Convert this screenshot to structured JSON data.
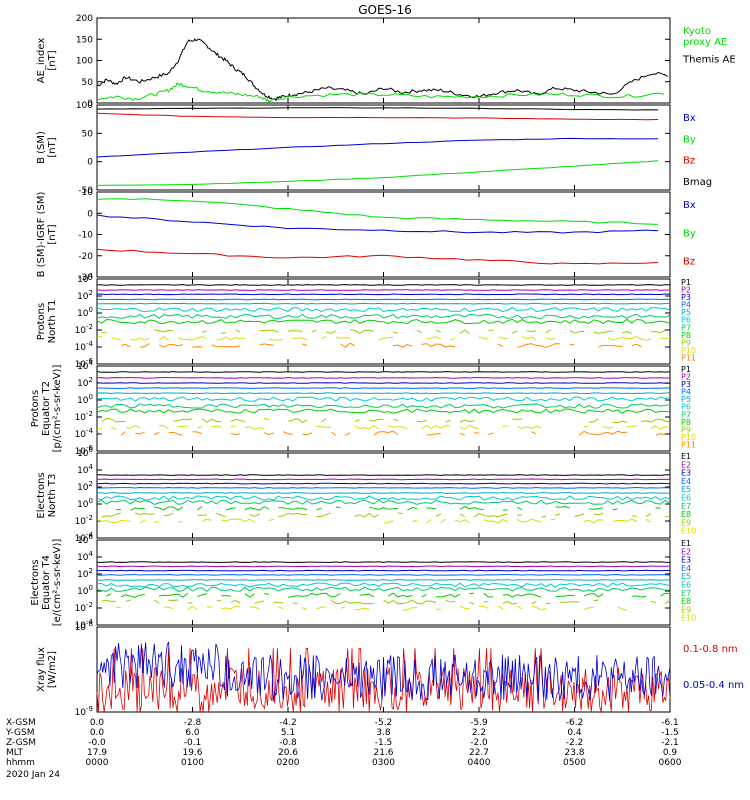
{
  "title": "GOES-16",
  "colors": {
    "black": "#000000",
    "green": "#00dd00",
    "blue": "#0000cc",
    "red": "#dd0000",
    "p": [
      "#000000",
      "#aa00aa",
      "#0000cc",
      "#0066ff",
      "#00aacc",
      "#00cccc",
      "#00cc66",
      "#00cc00",
      "#99cc00",
      "#dddd00",
      "#ff8800",
      "#ff0000",
      "#cc0000"
    ]
  },
  "chart_data": [
    {
      "type": "line",
      "ylabel": "AE_index\n[nT]",
      "ylim": [
        0,
        200
      ],
      "yticks": [
        "200",
        "150",
        "100",
        "50",
        "0"
      ],
      "legend": [
        {
          "text": "Kyoto\nproxy AE",
          "color": "#00dd00"
        },
        {
          "text": "Themis AE",
          "color": "#000000"
        }
      ],
      "series": [
        {
          "name": "Themis AE",
          "color": "#000000",
          "x": [
            0,
            0.1,
            0.2,
            0.3,
            0.45,
            0.6,
            0.75,
            0.85,
            0.95,
            1.05,
            1.15,
            1.25,
            1.35,
            1.45,
            1.55,
            1.65,
            1.75,
            1.85,
            1.95,
            2.05,
            2.2,
            2.4,
            2.6,
            2.8,
            3.0,
            3.2,
            3.4,
            3.6,
            3.8,
            4.0,
            4.2,
            4.4,
            4.6,
            4.8,
            5.0,
            5.2,
            5.4,
            5.6,
            5.8,
            6.0
          ],
          "y": [
            40,
            55,
            45,
            60,
            50,
            60,
            70,
            100,
            145,
            150,
            135,
            115,
            100,
            80,
            65,
            40,
            20,
            10,
            15,
            20,
            25,
            35,
            30,
            20,
            35,
            25,
            30,
            30,
            20,
            15,
            25,
            30,
            20,
            35,
            30,
            25,
            20,
            50,
            70,
            65
          ]
        },
        {
          "name": "Kyoto proxy AE",
          "color": "#00dd00",
          "x": [
            0,
            0.2,
            0.4,
            0.6,
            0.75,
            0.85,
            0.95,
            1.1,
            1.3,
            1.5,
            1.7,
            1.8,
            2.0,
            2.5,
            3.0,
            3.5,
            4.0,
            4.5,
            5.0,
            5.5,
            6.0
          ],
          "y": [
            10,
            15,
            10,
            20,
            30,
            45,
            40,
            30,
            25,
            20,
            15,
            5,
            15,
            20,
            20,
            15,
            15,
            20,
            20,
            15,
            25
          ]
        }
      ]
    },
    {
      "type": "line",
      "ylabel": "B (SM)\n[nT]",
      "ylim": [
        -50,
        100
      ],
      "yticks": [
        "100",
        "50",
        "0",
        "-50"
      ],
      "legend": [
        {
          "text": "Bx",
          "color": "#0000cc"
        },
        {
          "text": "By",
          "color": "#00dd00"
        },
        {
          "text": "Bz",
          "color": "#dd0000"
        },
        {
          "text": "Bmag",
          "color": "#000000"
        }
      ],
      "series": [
        {
          "name": "Bmag",
          "color": "#000000",
          "x": [
            0,
            1,
            2,
            3,
            4,
            5,
            6
          ],
          "y": [
            93,
            94,
            95,
            95,
            94,
            92,
            91
          ]
        },
        {
          "name": "Bz",
          "color": "#dd0000",
          "x": [
            0,
            1,
            2,
            3,
            4,
            5,
            6
          ],
          "y": [
            85,
            80,
            78,
            78,
            77,
            75,
            74
          ]
        },
        {
          "name": "Bx",
          "color": "#0000cc",
          "x": [
            0,
            1,
            2,
            3,
            4,
            5,
            6
          ],
          "y": [
            8,
            17,
            25,
            32,
            38,
            41,
            40
          ]
        },
        {
          "name": "By",
          "color": "#00dd00",
          "x": [
            0,
            1,
            2,
            3,
            4,
            5,
            6
          ],
          "y": [
            -42,
            -40,
            -35,
            -28,
            -18,
            -8,
            3
          ]
        }
      ]
    },
    {
      "type": "line",
      "ylabel": "B (SM)-IGRF (SM)\n[nT]",
      "ylim": [
        -30,
        10
      ],
      "yticks": [
        "10",
        "0",
        "-10",
        "-20",
        "-30"
      ],
      "legend": [
        {
          "text": "Bx",
          "color": "#0000cc"
        },
        {
          "text": "By",
          "color": "#00dd00"
        },
        {
          "text": "Bz",
          "color": "#dd0000"
        }
      ],
      "series": [
        {
          "name": "By",
          "color": "#00dd00",
          "x": [
            0,
            1,
            2,
            3,
            4,
            5,
            6
          ],
          "y": [
            7,
            6,
            2,
            -2,
            -3,
            -4,
            -5
          ]
        },
        {
          "name": "Bx",
          "color": "#0000cc",
          "x": [
            0,
            1,
            2,
            3,
            4,
            5,
            6
          ],
          "y": [
            -1,
            -4,
            -7,
            -8,
            -9,
            -9,
            -8
          ]
        },
        {
          "name": "Bz",
          "color": "#dd0000",
          "x": [
            0,
            1,
            2,
            3,
            4,
            5,
            6
          ],
          "y": [
            -17,
            -19,
            -21,
            -20,
            -22,
            -24,
            -23
          ]
        }
      ]
    },
    {
      "type": "line",
      "log": true,
      "ylabel": "Protons\nNorth T1",
      "ylim": [
        -6,
        4
      ],
      "yticks": [
        "10^4",
        "10^2",
        "10^0",
        "10^-2",
        "10^-4",
        "10^-6"
      ],
      "legend": [
        "P1",
        "P2",
        "P3",
        "P4",
        "P5",
        "P6",
        "P7",
        "P8",
        "P9",
        "P10",
        "P11"
      ],
      "levels": [
        3.3,
        2.7,
        2.2,
        1.6,
        1.1,
        0.4,
        -0.4,
        -1.0,
        -2.2,
        -3.0,
        -3.8
      ]
    },
    {
      "type": "line",
      "log": true,
      "ylabel": "Protons\nEquator T2\n[p/(cm²-s-sr-keV)]",
      "ylim": [
        -6,
        4
      ],
      "yticks": [
        "10^4",
        "10^2",
        "10^0",
        "10^-2",
        "10^-4",
        "10^-6"
      ],
      "legend": [
        "P1",
        "P2",
        "P3",
        "P4",
        "P5",
        "P6",
        "P7",
        "P8",
        "P9",
        "P10",
        "P11"
      ],
      "levels": [
        3.3,
        2.6,
        2.0,
        1.4,
        0.8,
        0.1,
        -0.7,
        -1.3,
        -2.4,
        -3.2,
        -3.9
      ]
    },
    {
      "type": "line",
      "log": true,
      "ylabel": "Electrons\nNorth T3",
      "ylim": [
        -4,
        6
      ],
      "yticks": [
        "10^6",
        "10^4",
        "10^2",
        "10^0",
        "10^-2",
        "10^-4"
      ],
      "legend": [
        "E1",
        "E2",
        "E3",
        "E4",
        "E5",
        "E6",
        "E7",
        "E8",
        "E9",
        "E10"
      ],
      "levels": [
        3.4,
        2.9,
        2.4,
        1.9,
        1.3,
        0.7,
        0.2,
        -0.5,
        -1.3,
        -2.0
      ]
    },
    {
      "type": "line",
      "log": true,
      "ylabel": "Electrons\nEquator T4\n[e/(cm²-s-sr-keV)]",
      "ylim": [
        -4,
        6
      ],
      "yticks": [
        "10^6",
        "10^4",
        "10^2",
        "10^0",
        "10^-2",
        "10^-4"
      ],
      "legend": [
        "E1",
        "E2",
        "E3",
        "E4",
        "E5",
        "E6",
        "E7",
        "E8",
        "E9",
        "E10"
      ],
      "levels": [
        3.4,
        2.9,
        2.4,
        1.9,
        1.3,
        0.7,
        0.2,
        -0.5,
        -1.3,
        -2.0
      ]
    },
    {
      "type": "line",
      "log": true,
      "ylabel": "Xray flux\n[W/m2]",
      "ylim": [
        -9,
        -8
      ],
      "yticks": [
        "10^-8",
        "10^-9"
      ],
      "legend": [
        {
          "text": "0.1-0.8 nm",
          "color": "#dd0000"
        },
        {
          "text": "0.05-0.4 nm",
          "color": "#0000cc"
        }
      ]
    }
  ],
  "xaxis": {
    "rows": [
      {
        "label": "X-GSM",
        "values": [
          "0.0",
          "-2.8",
          "-4.2",
          "-5.2",
          "-5.9",
          "-6.2",
          "-6.1"
        ]
      },
      {
        "label": "Y-GSM",
        "values": [
          "0.0",
          "6.0",
          "5.1",
          "3.8",
          "2.2",
          "0.4",
          "-1.5"
        ]
      },
      {
        "label": "Z-GSM",
        "values": [
          "-0.0",
          "-0.1",
          "-0.8",
          "-1.5",
          "-2.0",
          "-2.2",
          "-2.1"
        ]
      },
      {
        "label": "MLT",
        "values": [
          "17.9",
          "19.6",
          "20.6",
          "21.6",
          "22.7",
          "23.8",
          "0.9"
        ]
      },
      {
        "label": "hhmm",
        "values": [
          "0000",
          "0100",
          "0200",
          "0300",
          "0400",
          "0500",
          "0600"
        ]
      }
    ],
    "date": "2020 Jan 24"
  }
}
